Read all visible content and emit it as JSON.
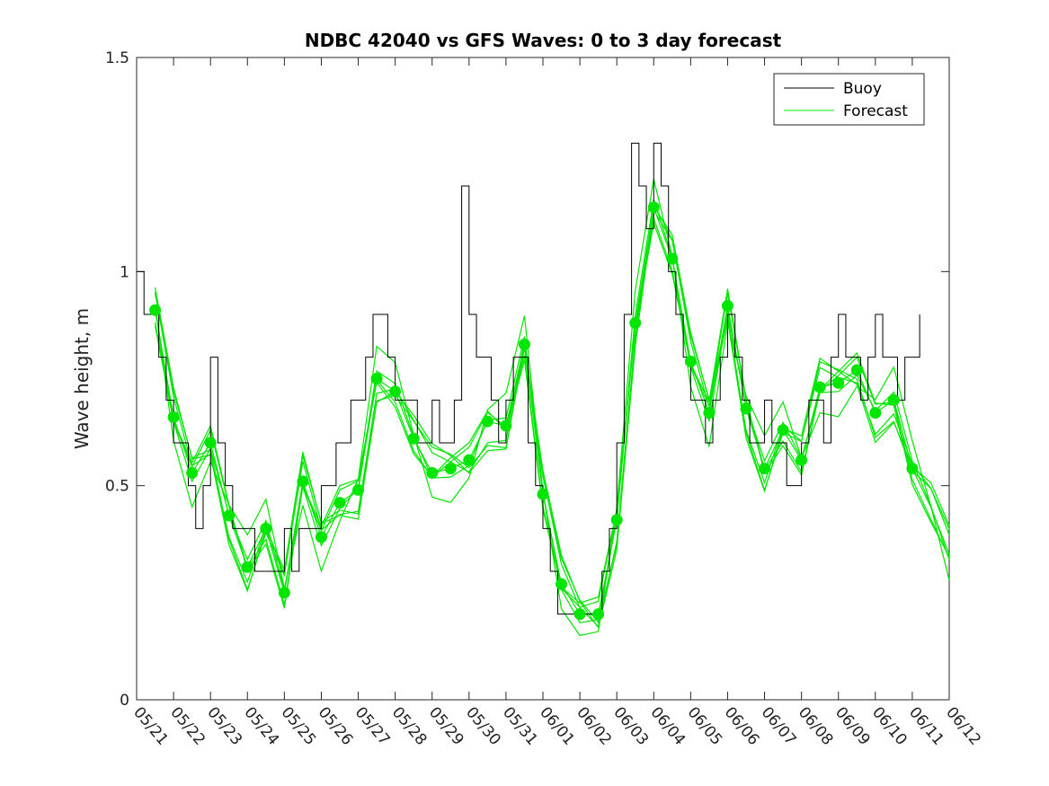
{
  "chart_data": {
    "type": "line",
    "title": "NDBC 42040 vs GFS Waves: 0 to 3 day forecast",
    "xlabel": "",
    "ylabel": "Wave height, m",
    "ylim": [
      0,
      1.5
    ],
    "xlim": [
      "05/21",
      "06/12"
    ],
    "grid": false,
    "legend_position": "top-right",
    "x_tick_labels": [
      "05/21",
      "05/22",
      "05/23",
      "05/24",
      "05/25",
      "05/26",
      "05/27",
      "05/28",
      "05/29",
      "05/30",
      "05/31",
      "06/01",
      "06/02",
      "06/03",
      "06/04",
      "06/05",
      "06/06",
      "06/07",
      "06/08",
      "06/09",
      "06/10",
      "06/11",
      "06/12"
    ],
    "y_ticks": [
      0,
      0.5,
      1,
      1.5
    ],
    "y_tick_labels": [
      "0",
      "0.5",
      "1",
      "1.5"
    ],
    "legend": [
      "Buoy",
      "Forecast"
    ],
    "colors": {
      "buoy": "#000000",
      "forecast": "#00e600"
    },
    "series": [
      {
        "name": "Buoy",
        "x_days": [
          0,
          0.2,
          0.4,
          0.6,
          0.8,
          1.0,
          1.2,
          1.4,
          1.6,
          1.8,
          2.0,
          2.2,
          2.4,
          2.6,
          2.8,
          3.0,
          3.2,
          3.4,
          3.6,
          3.8,
          4.0,
          4.2,
          4.4,
          4.6,
          4.8,
          5.0,
          5.2,
          5.4,
          5.6,
          5.8,
          6.0,
          6.2,
          6.4,
          6.6,
          6.8,
          7.0,
          7.2,
          7.4,
          7.6,
          7.8,
          8.0,
          8.2,
          8.4,
          8.6,
          8.8,
          9.0,
          9.2,
          9.4,
          9.6,
          9.8,
          10.0,
          10.2,
          10.4,
          10.6,
          10.8,
          11.0,
          11.2,
          11.4,
          11.6,
          11.8,
          12.0,
          12.2,
          12.4,
          12.6,
          12.8,
          13.0,
          13.2,
          13.4,
          13.6,
          13.8,
          14.0,
          14.2,
          14.4,
          14.6,
          14.8,
          15.0,
          15.2,
          15.4,
          15.6,
          15.8,
          16.0,
          16.2,
          16.4,
          16.6,
          16.8,
          17.0,
          17.2,
          17.4,
          17.6,
          17.8,
          18.0,
          18.2,
          18.4,
          18.6,
          18.8,
          19.0,
          19.2,
          19.4,
          19.6,
          19.8,
          20.0,
          20.2,
          20.4,
          20.6,
          20.8,
          21.0,
          21.2
        ],
        "values": [
          1.0,
          0.9,
          0.9,
          0.8,
          0.7,
          0.6,
          0.6,
          0.5,
          0.4,
          0.5,
          0.8,
          0.6,
          0.5,
          0.4,
          0.4,
          0.4,
          0.3,
          0.3,
          0.3,
          0.3,
          0.4,
          0.3,
          0.4,
          0.4,
          0.4,
          0.5,
          0.5,
          0.6,
          0.6,
          0.7,
          0.7,
          0.8,
          0.9,
          0.9,
          0.8,
          0.7,
          0.7,
          0.7,
          0.6,
          0.6,
          0.7,
          0.6,
          0.6,
          0.7,
          1.2,
          0.9,
          0.8,
          0.8,
          0.7,
          0.6,
          0.7,
          0.8,
          0.8,
          0.6,
          0.5,
          0.4,
          0.3,
          0.2,
          0.2,
          0.2,
          0.2,
          0.2,
          0.2,
          0.3,
          0.4,
          0.6,
          0.9,
          1.3,
          1.2,
          1.1,
          1.3,
          1.2,
          1.0,
          0.9,
          0.8,
          0.7,
          0.7,
          0.6,
          0.7,
          0.8,
          0.9,
          0.8,
          0.7,
          0.6,
          0.6,
          0.7,
          0.6,
          0.6,
          0.5,
          0.5,
          0.6,
          0.7,
          0.7,
          0.6,
          0.8,
          0.9,
          0.8,
          0.8,
          0.7,
          0.8,
          0.9,
          0.8,
          0.8,
          0.7,
          0.8,
          0.8,
          0.9
        ]
      },
      {
        "name": "Forecast",
        "x_days": [
          0.5,
          1.0,
          1.5,
          2.0,
          2.5,
          3.0,
          3.5,
          4.0,
          4.5,
          5.0,
          5.5,
          6.0,
          6.5,
          7.0,
          7.5,
          8.0,
          8.5,
          9.0,
          9.5,
          10.0,
          10.5,
          11.0,
          11.5,
          12.0,
          12.5,
          13.0,
          13.5,
          14.0,
          14.5,
          15.0,
          15.5,
          16.0,
          16.5,
          17.0,
          17.5,
          18.0,
          18.5,
          19.0,
          19.5,
          20.0,
          20.5,
          21.0,
          21.5,
          22.0
        ],
        "values": [
          0.91,
          0.66,
          0.53,
          0.6,
          0.43,
          0.31,
          0.4,
          0.25,
          0.51,
          0.38,
          0.46,
          0.49,
          0.75,
          0.72,
          0.61,
          0.53,
          0.54,
          0.56,
          0.65,
          0.64,
          0.83,
          0.48,
          0.27,
          0.2,
          0.2,
          0.42,
          0.88,
          1.15,
          1.03,
          0.79,
          0.67,
          0.92,
          0.68,
          0.54,
          0.63,
          0.56,
          0.73,
          0.74,
          0.77,
          0.67,
          0.7,
          0.54,
          0.45,
          0.34
        ]
      }
    ],
    "forecast_ensemble_offsets": [
      0,
      0.05,
      -0.04,
      0.08,
      -0.07,
      0.03,
      -0.02,
      0.06
    ],
    "forecast_marker_days": [
      0.5,
      1.0,
      1.5,
      2.0,
      2.5,
      3.0,
      3.5,
      4.0,
      4.5,
      5.0,
      5.5,
      6.0,
      6.5,
      7.0,
      7.5,
      8.0,
      8.5,
      9.0,
      9.5,
      10.0,
      10.5,
      11.0,
      11.5,
      12.0,
      12.5,
      13.0,
      13.5,
      14.0,
      14.5,
      15.0,
      15.5,
      16.0,
      16.5,
      17.0,
      17.5,
      18.0,
      18.5,
      19.0,
      19.5,
      20.0,
      20.5,
      21.0
    ],
    "forecast_marker_values": [
      0.91,
      0.66,
      0.53,
      0.6,
      0.43,
      0.31,
      0.4,
      0.25,
      0.51,
      0.38,
      0.46,
      0.49,
      0.75,
      0.72,
      0.61,
      0.53,
      0.54,
      0.56,
      0.65,
      0.64,
      0.83,
      0.48,
      0.27,
      0.2,
      0.2,
      0.42,
      0.88,
      1.15,
      1.03,
      0.79,
      0.67,
      0.92,
      0.68,
      0.54,
      0.63,
      0.56,
      0.73,
      0.74,
      0.77,
      0.67,
      0.7,
      0.54
    ]
  }
}
